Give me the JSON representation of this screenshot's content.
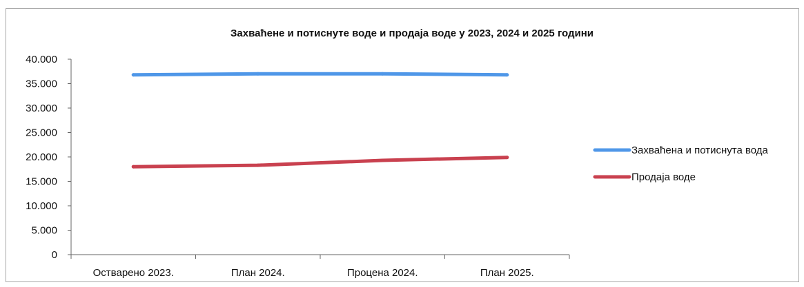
{
  "chart_data": {
    "type": "line",
    "title": "Захваћене и потиснуте воде и продаја воде у 2023, 2024 и 2025 години",
    "categories": [
      "Остварено 2023.",
      "План 2024.",
      "Процена 2024.",
      "План 2025."
    ],
    "y_ticks": [
      "0",
      "5.000",
      "10.000",
      "15.000",
      "20.000",
      "25.000",
      "30.000",
      "35.000",
      "40.000"
    ],
    "ylim": [
      0,
      40000
    ],
    "grid": false,
    "legend_position": "right",
    "series": [
      {
        "name": "Захваћена и потиснута вода",
        "values": [
          36800,
          37000,
          37000,
          36800
        ],
        "color": "#4F97E8"
      },
      {
        "name": "Продаја воде",
        "values": [
          18000,
          18300,
          19300,
          19900
        ],
        "color": "#C9414F"
      }
    ]
  }
}
